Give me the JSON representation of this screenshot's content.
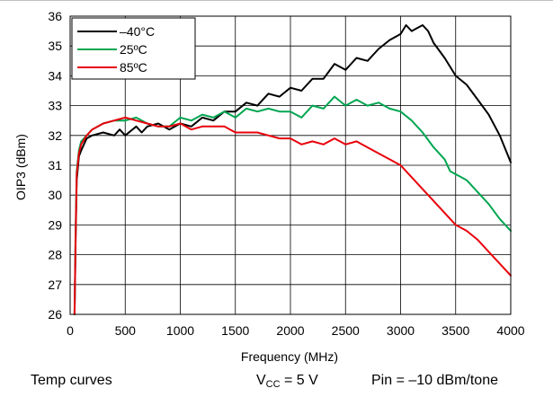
{
  "chart_data": {
    "type": "line",
    "xlabel": "Frequency (MHz)",
    "ylabel": "OIP3 (dBm)",
    "xlim": [
      0,
      4000
    ],
    "ylim": [
      26,
      36
    ],
    "xticks": [
      "0",
      "500",
      "1000",
      "1500",
      "2000",
      "2500",
      "3000",
      "3500",
      "4000"
    ],
    "yticks": [
      "26",
      "27",
      "28",
      "29",
      "30",
      "31",
      "32",
      "33",
      "34",
      "35",
      "36"
    ],
    "grid": true,
    "legend_position": "top-left",
    "series": [
      {
        "name": "–40°C",
        "color": "#000000",
        "points": [
          [
            40,
            26.0
          ],
          [
            50,
            28.5
          ],
          [
            60,
            30.5
          ],
          [
            80,
            31.3
          ],
          [
            100,
            31.5
          ],
          [
            150,
            31.9
          ],
          [
            200,
            32.0
          ],
          [
            300,
            32.1
          ],
          [
            400,
            32.0
          ],
          [
            450,
            32.2
          ],
          [
            500,
            32.0
          ],
          [
            600,
            32.3
          ],
          [
            650,
            32.1
          ],
          [
            700,
            32.3
          ],
          [
            800,
            32.4
          ],
          [
            900,
            32.2
          ],
          [
            1000,
            32.4
          ],
          [
            1100,
            32.3
          ],
          [
            1200,
            32.6
          ],
          [
            1300,
            32.5
          ],
          [
            1400,
            32.8
          ],
          [
            1500,
            32.8
          ],
          [
            1600,
            33.1
          ],
          [
            1700,
            33.0
          ],
          [
            1800,
            33.4
          ],
          [
            1900,
            33.3
          ],
          [
            2000,
            33.6
          ],
          [
            2100,
            33.5
          ],
          [
            2200,
            33.9
          ],
          [
            2300,
            33.9
          ],
          [
            2400,
            34.4
          ],
          [
            2500,
            34.2
          ],
          [
            2600,
            34.6
          ],
          [
            2700,
            34.5
          ],
          [
            2800,
            34.9
          ],
          [
            2900,
            35.2
          ],
          [
            3000,
            35.4
          ],
          [
            3050,
            35.7
          ],
          [
            3100,
            35.5
          ],
          [
            3150,
            35.6
          ],
          [
            3200,
            35.7
          ],
          [
            3250,
            35.5
          ],
          [
            3300,
            35.1
          ],
          [
            3400,
            34.6
          ],
          [
            3500,
            34.0
          ],
          [
            3600,
            33.7
          ],
          [
            3700,
            33.2
          ],
          [
            3800,
            32.7
          ],
          [
            3900,
            32.0
          ],
          [
            4000,
            31.1
          ]
        ]
      },
      {
        "name": "25ºC",
        "color": "#00a651",
        "points": [
          [
            40,
            26.0
          ],
          [
            50,
            28.8
          ],
          [
            60,
            30.8
          ],
          [
            80,
            31.5
          ],
          [
            100,
            31.8
          ],
          [
            150,
            32.0
          ],
          [
            200,
            32.2
          ],
          [
            300,
            32.4
          ],
          [
            400,
            32.5
          ],
          [
            500,
            32.5
          ],
          [
            600,
            32.6
          ],
          [
            700,
            32.4
          ],
          [
            800,
            32.3
          ],
          [
            900,
            32.3
          ],
          [
            1000,
            32.6
          ],
          [
            1100,
            32.5
          ],
          [
            1200,
            32.7
          ],
          [
            1300,
            32.6
          ],
          [
            1400,
            32.8
          ],
          [
            1500,
            32.6
          ],
          [
            1600,
            32.9
          ],
          [
            1700,
            32.8
          ],
          [
            1800,
            32.9
          ],
          [
            1900,
            32.8
          ],
          [
            2000,
            32.8
          ],
          [
            2100,
            32.6
          ],
          [
            2200,
            33.0
          ],
          [
            2300,
            32.9
          ],
          [
            2400,
            33.3
          ],
          [
            2500,
            33.0
          ],
          [
            2600,
            33.2
          ],
          [
            2700,
            33.0
          ],
          [
            2800,
            33.1
          ],
          [
            2900,
            32.9
          ],
          [
            3000,
            32.8
          ],
          [
            3100,
            32.5
          ],
          [
            3200,
            32.1
          ],
          [
            3300,
            31.6
          ],
          [
            3400,
            31.2
          ],
          [
            3450,
            30.8
          ],
          [
            3550,
            30.6
          ],
          [
            3600,
            30.5
          ],
          [
            3700,
            30.1
          ],
          [
            3800,
            29.7
          ],
          [
            3900,
            29.2
          ],
          [
            4000,
            28.8
          ]
        ]
      },
      {
        "name": "85ºC",
        "color": "#e8000b",
        "points": [
          [
            40,
            26.0
          ],
          [
            50,
            28.6
          ],
          [
            60,
            30.7
          ],
          [
            80,
            31.4
          ],
          [
            100,
            31.7
          ],
          [
            150,
            32.0
          ],
          [
            200,
            32.2
          ],
          [
            300,
            32.4
          ],
          [
            400,
            32.5
          ],
          [
            500,
            32.6
          ],
          [
            600,
            32.5
          ],
          [
            700,
            32.4
          ],
          [
            800,
            32.3
          ],
          [
            900,
            32.3
          ],
          [
            1000,
            32.4
          ],
          [
            1100,
            32.2
          ],
          [
            1200,
            32.3
          ],
          [
            1300,
            32.3
          ],
          [
            1400,
            32.3
          ],
          [
            1500,
            32.1
          ],
          [
            1600,
            32.1
          ],
          [
            1700,
            32.1
          ],
          [
            1800,
            32.0
          ],
          [
            1900,
            31.9
          ],
          [
            2000,
            31.9
          ],
          [
            2100,
            31.7
          ],
          [
            2200,
            31.8
          ],
          [
            2300,
            31.7
          ],
          [
            2400,
            31.9
          ],
          [
            2500,
            31.7
          ],
          [
            2600,
            31.8
          ],
          [
            2700,
            31.6
          ],
          [
            2800,
            31.4
          ],
          [
            2900,
            31.2
          ],
          [
            3000,
            31.0
          ],
          [
            3100,
            30.6
          ],
          [
            3200,
            30.2
          ],
          [
            3300,
            29.8
          ],
          [
            3400,
            29.4
          ],
          [
            3500,
            29.0
          ],
          [
            3600,
            28.8
          ],
          [
            3700,
            28.5
          ],
          [
            3800,
            28.1
          ],
          [
            3900,
            27.7
          ],
          [
            4000,
            27.3
          ]
        ]
      }
    ]
  },
  "footer": {
    "left": "Temp curves",
    "vcc_prefix": "V",
    "vcc_sub": "CC",
    "vcc_value": " = 5 V",
    "pin": "Pin = –10 dBm/tone"
  }
}
